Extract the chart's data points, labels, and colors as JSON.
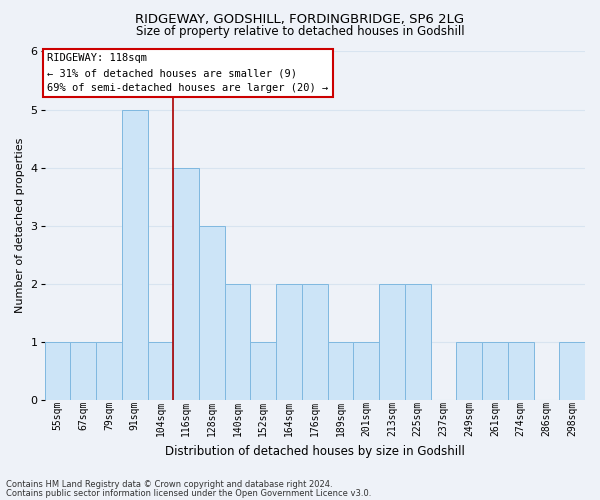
{
  "title1": "RIDGEWAY, GODSHILL, FORDINGBRIDGE, SP6 2LG",
  "title2": "Size of property relative to detached houses in Godshill",
  "xlabel": "Distribution of detached houses by size in Godshill",
  "ylabel": "Number of detached properties",
  "categories": [
    "55sqm",
    "67sqm",
    "79sqm",
    "91sqm",
    "104sqm",
    "116sqm",
    "128sqm",
    "140sqm",
    "152sqm",
    "164sqm",
    "176sqm",
    "189sqm",
    "201sqm",
    "213sqm",
    "225sqm",
    "237sqm",
    "249sqm",
    "261sqm",
    "274sqm",
    "286sqm",
    "298sqm"
  ],
  "values": [
    1,
    1,
    1,
    5,
    1,
    4,
    3,
    2,
    1,
    2,
    2,
    1,
    1,
    2,
    2,
    0,
    1,
    1,
    1,
    0,
    1
  ],
  "bar_color": "#cce4f7",
  "bar_edge_color": "#7fb8e0",
  "vline_index": 5,
  "annotation_title": "RIDGEWAY: 118sqm",
  "annotation_line1": "← 31% of detached houses are smaller (9)",
  "annotation_line2": "69% of semi-detached houses are larger (20) →",
  "vline_color": "#aa0000",
  "annotation_box_facecolor": "#ffffff",
  "annotation_box_edgecolor": "#cc0000",
  "footnote1": "Contains HM Land Registry data © Crown copyright and database right 2024.",
  "footnote2": "Contains public sector information licensed under the Open Government Licence v3.0.",
  "ylim": [
    0,
    6
  ],
  "yticks": [
    0,
    1,
    2,
    3,
    4,
    5,
    6
  ],
  "grid_color": "#d8e4f0",
  "bg_color": "#eef2f8",
  "title_fontsize": 9.5,
  "subtitle_fontsize": 8.5
}
